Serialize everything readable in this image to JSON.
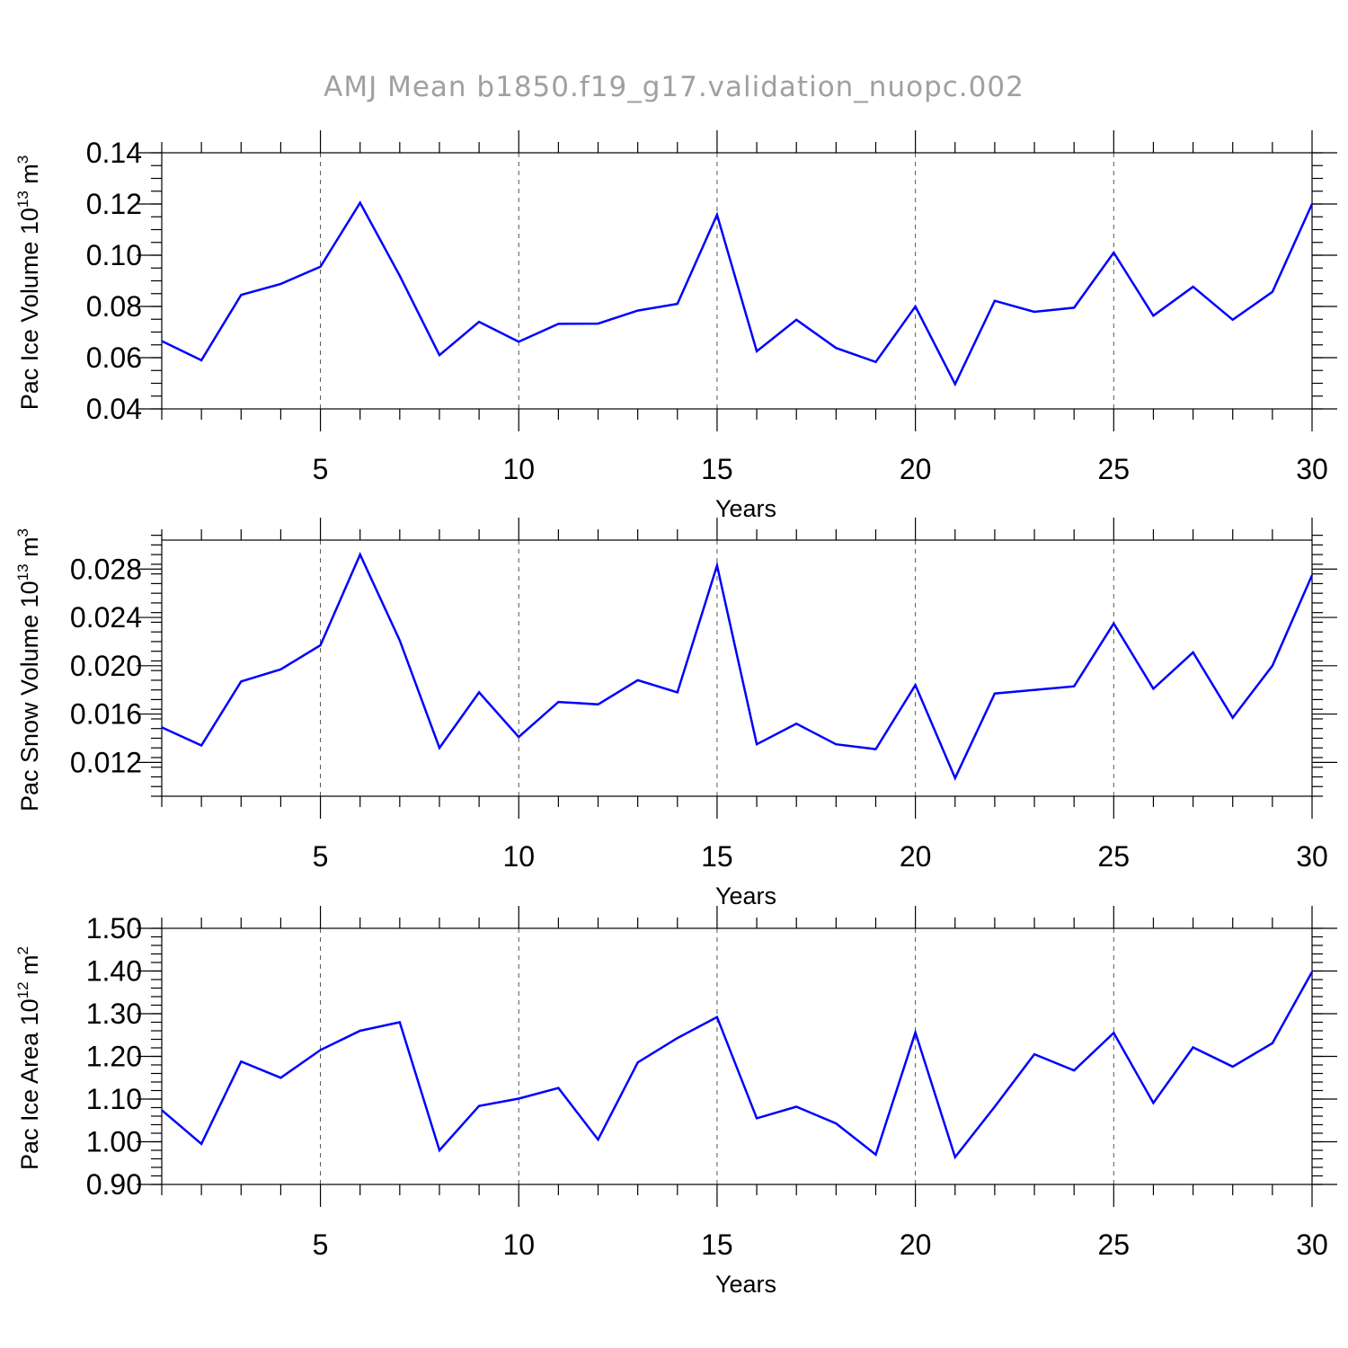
{
  "title": "AMJ Mean b1850.f19_g17.validation_nuopc.002",
  "colors": {
    "series": "#0000ff",
    "title": "#a0a0a0",
    "grid": "#555555"
  },
  "chart_data": [
    {
      "type": "line",
      "title": "",
      "xlabel": "Years",
      "ylabel": {
        "base": "Pac Ice Volume 10",
        "exp": "13",
        "unit": " m",
        "unit_exp": "3"
      },
      "xlim": [
        1,
        30
      ],
      "ylim": [
        0.04,
        0.14
      ],
      "xticks": [
        5,
        10,
        15,
        20,
        25,
        30
      ],
      "xtick_labels": [
        "5",
        "10",
        "15",
        "20",
        "25",
        "30"
      ],
      "yticks": [
        0.04,
        0.06,
        0.08,
        0.1,
        0.12,
        0.14
      ],
      "ytick_labels": [
        "0.04",
        "0.06",
        "0.08",
        "0.10",
        "0.12",
        "0.14"
      ],
      "grid": "vertical dashed at major x ticks",
      "x": [
        1,
        2,
        3,
        4,
        5,
        6,
        7,
        8,
        9,
        10,
        11,
        12,
        13,
        14,
        15,
        16,
        17,
        18,
        19,
        20,
        21,
        22,
        23,
        24,
        25,
        26,
        27,
        28,
        29,
        30
      ],
      "series": [
        {
          "values": [
            0.0665,
            0.059,
            0.0845,
            0.0888,
            0.0955,
            0.1205,
            0.092,
            0.061,
            0.074,
            0.0662,
            0.0732,
            0.0733,
            0.0784,
            0.081,
            0.1158,
            0.0625,
            0.0748,
            0.0638,
            0.0583,
            0.08,
            0.0497,
            0.0822,
            0.0779,
            0.0795,
            0.101,
            0.0764,
            0.0877,
            0.0748,
            0.0857,
            0.12
          ]
        }
      ]
    },
    {
      "type": "line",
      "title": "",
      "xlabel": "Years",
      "ylabel": {
        "base": "Pac Snow Volume 10",
        "exp": "13",
        "unit": " m",
        "unit_exp": "3"
      },
      "xlim": [
        1,
        30
      ],
      "ylim": [
        0.0092,
        0.0304
      ],
      "xticks": [
        5,
        10,
        15,
        20,
        25,
        30
      ],
      "xtick_labels": [
        "5",
        "10",
        "15",
        "20",
        "25",
        "30"
      ],
      "yticks": [
        0.012,
        0.016,
        0.02,
        0.024,
        0.028
      ],
      "ytick_labels": [
        "0.012",
        "0.016",
        "0.020",
        "0.024",
        "0.028"
      ],
      "grid": "vertical dashed at major x ticks",
      "x": [
        1,
        2,
        3,
        4,
        5,
        6,
        7,
        8,
        9,
        10,
        11,
        12,
        13,
        14,
        15,
        16,
        17,
        18,
        19,
        20,
        21,
        22,
        23,
        24,
        25,
        26,
        27,
        28,
        29,
        30
      ],
      "series": [
        {
          "values": [
            0.0149,
            0.0134,
            0.0187,
            0.0197,
            0.0217,
            0.0292,
            0.0221,
            0.0132,
            0.0178,
            0.0141,
            0.017,
            0.0168,
            0.0188,
            0.0178,
            0.0283,
            0.0135,
            0.0152,
            0.0135,
            0.0131,
            0.0184,
            0.0107,
            0.0177,
            0.018,
            0.0183,
            0.0235,
            0.0181,
            0.0211,
            0.0157,
            0.02,
            0.0275
          ]
        }
      ]
    },
    {
      "type": "line",
      "title": "",
      "xlabel": "Years",
      "ylabel": {
        "base": "Pac Ice Area 10",
        "exp": "12",
        "unit": " m",
        "unit_exp": "2"
      },
      "xlim": [
        1,
        30
      ],
      "ylim": [
        0.9,
        1.5
      ],
      "xticks": [
        5,
        10,
        15,
        20,
        25,
        30
      ],
      "xtick_labels": [
        "5",
        "10",
        "15",
        "20",
        "25",
        "30"
      ],
      "yticks": [
        0.9,
        1.0,
        1.1,
        1.2,
        1.3,
        1.4,
        1.5
      ],
      "ytick_labels": [
        "0.90",
        "1.00",
        "1.10",
        "1.20",
        "1.30",
        "1.40",
        "1.50"
      ],
      "grid": "vertical dashed at major x ticks",
      "x": [
        1,
        2,
        3,
        4,
        5,
        6,
        7,
        8,
        9,
        10,
        11,
        12,
        13,
        14,
        15,
        16,
        17,
        18,
        19,
        20,
        21,
        22,
        23,
        24,
        25,
        26,
        27,
        28,
        29,
        30
      ],
      "series": [
        {
          "values": [
            1.074,
            0.995,
            1.188,
            1.15,
            1.215,
            1.26,
            1.28,
            0.98,
            1.084,
            1.101,
            1.126,
            1.005,
            1.186,
            1.243,
            1.292,
            1.055,
            1.082,
            1.043,
            0.97,
            1.256,
            0.964,
            1.082,
            1.205,
            1.167,
            1.255,
            1.091,
            1.221,
            1.176,
            1.231,
            1.398
          ]
        }
      ]
    }
  ]
}
